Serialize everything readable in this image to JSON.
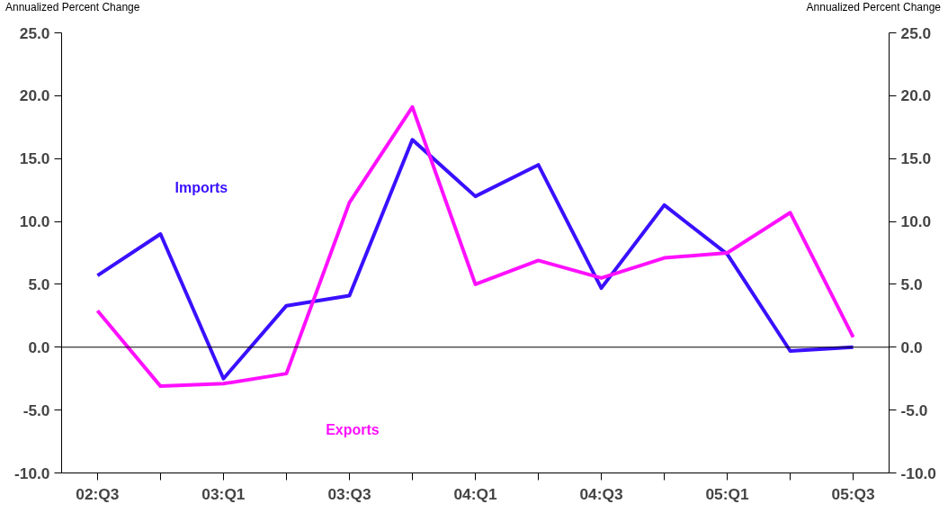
{
  "chart_data": {
    "type": "line",
    "ylabel": "Annualized Percent Change",
    "y2label": "Annualized Percent Change",
    "categories": [
      "02:Q3",
      null,
      "03:Q1",
      null,
      "03:Q3",
      null,
      "04:Q1",
      null,
      "04:Q3",
      null,
      "05:Q1",
      null,
      "05:Q3"
    ],
    "series": [
      {
        "name": "Imports",
        "color": "#3a10ff",
        "values": [
          5.7,
          9.0,
          -2.5,
          3.3,
          4.1,
          16.5,
          12.0,
          14.5,
          4.7,
          11.3,
          7.4,
          -0.3,
          0.0
        ]
      },
      {
        "name": "Exports",
        "color": "#ff10ff",
        "values": [
          2.9,
          -3.1,
          -2.9,
          -2.1,
          11.5,
          19.1,
          5.0,
          6.9,
          5.5,
          7.1,
          7.5,
          10.7,
          0.8
        ]
      }
    ],
    "ylim": [
      -10,
      25
    ],
    "yticks": [
      {
        "value": -10,
        "label": "-10.0"
      },
      {
        "value": -5,
        "label": "-5.0"
      },
      {
        "value": 0,
        "label": "0.0"
      },
      {
        "value": 5,
        "label": "5.0"
      },
      {
        "value": 10,
        "label": "10.0"
      },
      {
        "value": 15,
        "label": "15.0"
      },
      {
        "value": 20,
        "label": "20.0"
      },
      {
        "value": 25,
        "label": "25.0"
      }
    ],
    "y2lim": [
      -10,
      25
    ],
    "y2ticks": [
      {
        "value": -10,
        "label": "-10.0"
      },
      {
        "value": -5,
        "label": "-5.0"
      },
      {
        "value": 0,
        "label": "0.0"
      },
      {
        "value": 5,
        "label": "5.0"
      },
      {
        "value": 10,
        "label": "10.0"
      },
      {
        "value": 15,
        "label": "15.0"
      },
      {
        "value": 20,
        "label": "20.0"
      },
      {
        "value": 25,
        "label": "25.0"
      }
    ],
    "ref_lines": [
      {
        "axis": "y",
        "value": 0,
        "color": "#000000"
      }
    ],
    "grid": false,
    "marker": "none",
    "line_style": "solid"
  }
}
